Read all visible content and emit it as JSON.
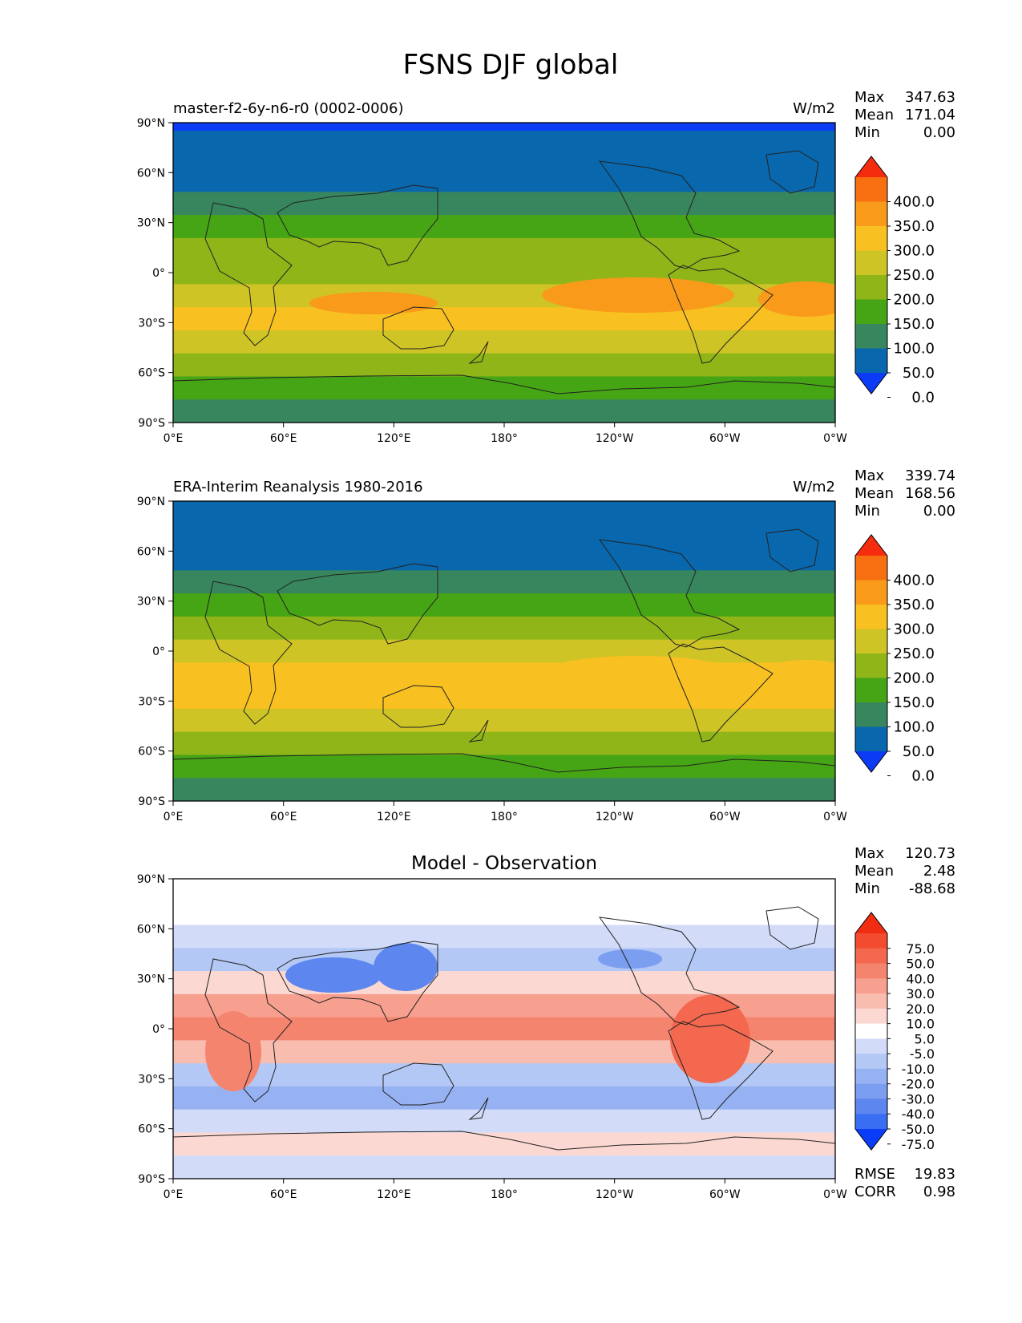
{
  "figure": {
    "title": "FSNS DJF global"
  },
  "axes": {
    "lat_ticks": [
      "90°N",
      "60°N",
      "30°N",
      "0°",
      "30°S",
      "60°S",
      "90°S"
    ],
    "lon_ticks": [
      "0°E",
      "60°E",
      "120°E",
      "180°",
      "120°W",
      "60°W",
      "0°W"
    ]
  },
  "panels": [
    {
      "id": "model",
      "left_title": "master-f2-6y-n6-r0 (0002-0006)",
      "center_title": "",
      "units": "W/m2",
      "stats": [
        {
          "label": "Max",
          "value": "347.63"
        },
        {
          "label": "Mean",
          "value": "171.04"
        },
        {
          "label": "Min",
          "value": "0.00"
        }
      ],
      "colorbar": {
        "labels": [
          "400.0",
          "350.0",
          "300.0",
          "250.0",
          "200.0",
          "150.0",
          "100.0",
          "50.0",
          "0.0"
        ],
        "colors": [
          "#0b3bf5",
          "#0967ad",
          "#37865e",
          "#46a514",
          "#8fb519",
          "#cfc426",
          "#f8c121",
          "#f99a1b",
          "#f86f12",
          "#f62c0e"
        ]
      },
      "footer_stats": []
    },
    {
      "id": "obs",
      "left_title": "ERA-Interim Reanalysis 1980-2016",
      "center_title": "",
      "units": "W/m2",
      "stats": [
        {
          "label": "Max",
          "value": "339.74"
        },
        {
          "label": "Mean",
          "value": "168.56"
        },
        {
          "label": "Min",
          "value": "0.00"
        }
      ],
      "colorbar": {
        "labels": [
          "400.0",
          "350.0",
          "300.0",
          "250.0",
          "200.0",
          "150.0",
          "100.0",
          "50.0",
          "0.0"
        ],
        "colors": [
          "#0b3bf5",
          "#0967ad",
          "#37865e",
          "#46a514",
          "#8fb519",
          "#cfc426",
          "#f8c121",
          "#f99a1b",
          "#f86f12",
          "#f62c0e"
        ]
      },
      "footer_stats": []
    },
    {
      "id": "diff",
      "left_title": "",
      "center_title": "Model - Observation",
      "units": "",
      "stats": [
        {
          "label": "Max",
          "value": "120.73"
        },
        {
          "label": "Mean",
          "value": "2.48"
        },
        {
          "label": "Min",
          "value": "-88.68"
        }
      ],
      "colorbar": {
        "labels": [
          "75.0",
          "50.0",
          "40.0",
          "30.0",
          "20.0",
          "10.0",
          "5.0",
          "-5.0",
          "-10.0",
          "-20.0",
          "-30.0",
          "-40.0",
          "-50.0",
          "-75.0"
        ],
        "colors": [
          "#0a3df7",
          "#3a6ef2",
          "#5d86ee",
          "#7b9ef0",
          "#97b2f3",
          "#b4c8f6",
          "#d2dcf9",
          "#ffffff",
          "#fbd9d2",
          "#f9bdb0",
          "#f7a08f",
          "#f5846f",
          "#f4684f",
          "#f24b30",
          "#f02c12"
        ]
      },
      "footer_stats": [
        {
          "label": "RMSE",
          "value": "19.83"
        },
        {
          "label": "CORR",
          "value": "0.98"
        }
      ]
    }
  ]
}
